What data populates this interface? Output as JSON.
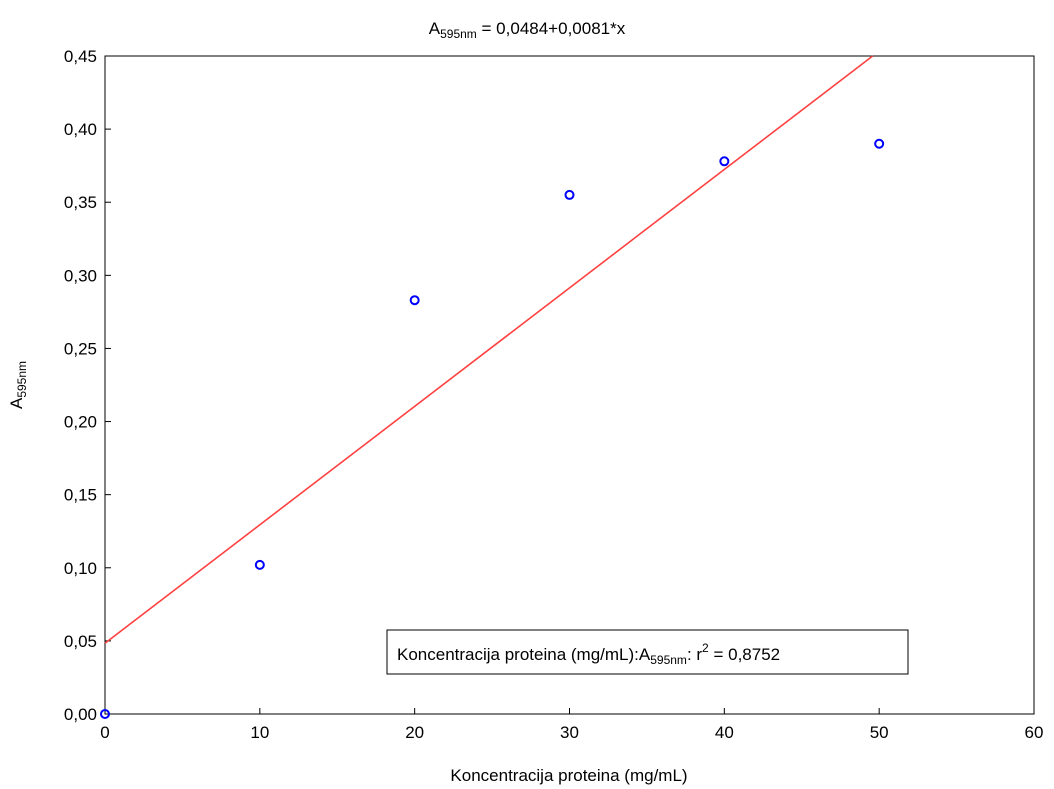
{
  "chart_data": {
    "type": "scatter",
    "title": {
      "base": "A",
      "subscript": "595nm",
      "rest": " = 0,0484+0,0081*x"
    },
    "xlabel": "Koncentracija proteina (mg/mL)",
    "ylabel": {
      "base": "A",
      "subscript": "595nm"
    },
    "xlim": [
      0,
      60
    ],
    "ylim": [
      0,
      0.45
    ],
    "xticks": [
      0,
      10,
      20,
      30,
      40,
      50,
      60
    ],
    "xtick_labels": [
      "0",
      "10",
      "20",
      "30",
      "40",
      "50",
      "60"
    ],
    "yticks": [
      0,
      0.05,
      0.1,
      0.15,
      0.2,
      0.25,
      0.3,
      0.35,
      0.4,
      0.45
    ],
    "ytick_labels": [
      "0,00",
      "0,05",
      "0,10",
      "0,15",
      "0,20",
      "0,25",
      "0,30",
      "0,35",
      "0,40",
      "0,45"
    ],
    "grid": false,
    "series": [
      {
        "x": [
          0,
          10,
          20,
          30,
          40,
          50
        ],
        "y": [
          0.0,
          0.102,
          0.283,
          0.355,
          0.378,
          0.39
        ],
        "marker": "open-circle",
        "color": "#0000ff"
      }
    ],
    "fit_line": {
      "intercept": 0.0484,
      "slope": 0.0081,
      "color": "#ff4040"
    },
    "legend": {
      "placement": "bottom-right",
      "text_prefix": "Koncentracija proteina (mg/mL):A",
      "text_subscript": "595nm",
      "text_middle": ":  r",
      "text_superscript": "2",
      "text_suffix": " = 0,8752"
    }
  }
}
